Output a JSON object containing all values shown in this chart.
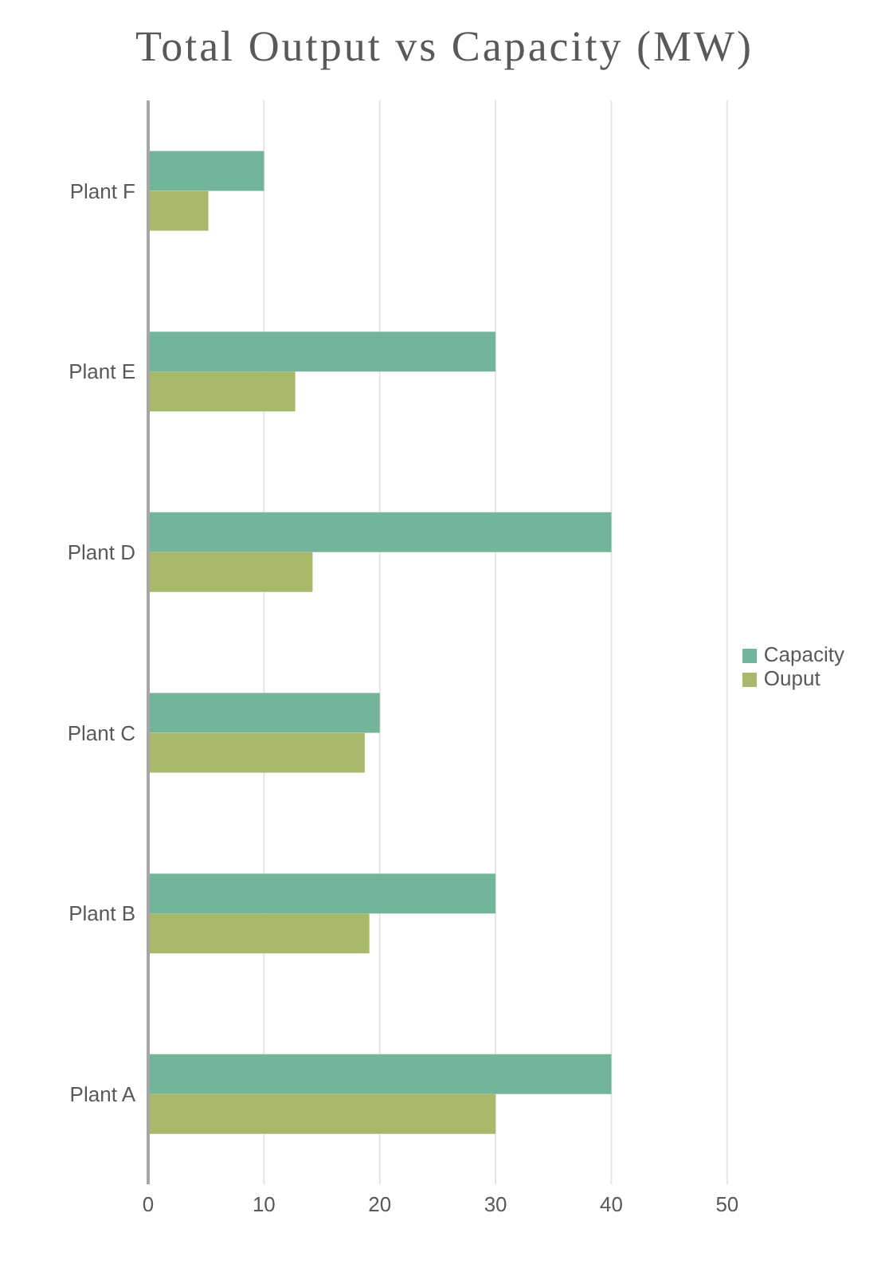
{
  "chart_data": {
    "type": "bar",
    "orientation": "horizontal",
    "title": "Total Output vs Capacity (MW)",
    "categories": [
      "Plant F",
      "Plant E",
      "Plant D",
      "Plant C",
      "Plant B",
      "Plant A"
    ],
    "series": [
      {
        "name": "Capacity",
        "color": "#72b59a",
        "values": [
          10,
          30,
          40,
          20,
          30,
          40
        ]
      },
      {
        "name": "Ouput",
        "color": "#a9b96b",
        "values": [
          5.2,
          12.7,
          14.2,
          18.7,
          19.1,
          30
        ]
      }
    ],
    "xlim": [
      0,
      50
    ],
    "xticks": [
      0,
      10,
      20,
      30,
      40,
      50
    ],
    "grid": "x",
    "legend": "right"
  }
}
